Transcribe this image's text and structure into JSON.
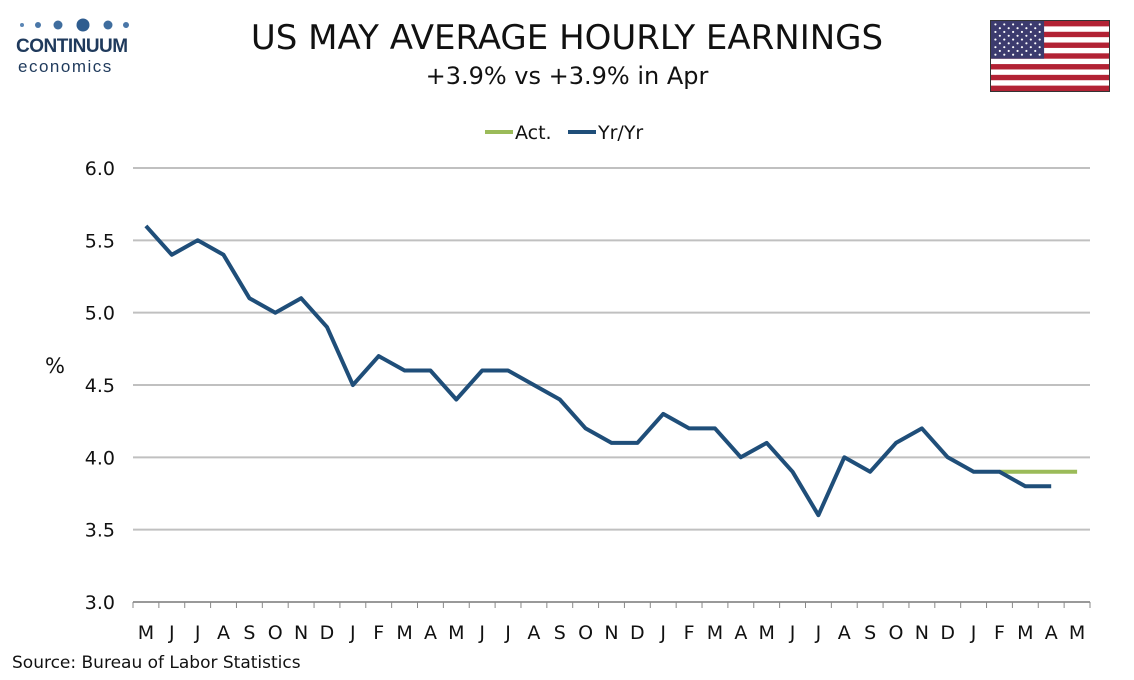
{
  "logo": {
    "name": "CONTINUUM",
    "sub": "economics",
    "color": "#1f3a5c"
  },
  "header": {
    "title": "US MAY AVERAGE HOURLY EARNINGS",
    "subtitle": "+3.9% vs +3.9% in Apr"
  },
  "flag": {
    "icon": "us-flag-icon"
  },
  "source": "Source: Bureau of Labor Statistics",
  "chart_data": {
    "type": "line",
    "title": "US MAY AVERAGE HOURLY EARNINGS",
    "subtitle": "+3.9% vs +3.9% in Apr",
    "ylabel": "%",
    "xlabel": "",
    "ylim": [
      3.0,
      6.0
    ],
    "yticks": [
      "3.0",
      "3.5",
      "4.0",
      "4.5",
      "5.0",
      "5.5",
      "6.0"
    ],
    "grid": true,
    "legend_position": "top-center",
    "categories": [
      "M",
      "J",
      "J",
      "A",
      "S",
      "O",
      "N",
      "D",
      "J",
      "F",
      "M",
      "A",
      "M",
      "J",
      "J",
      "A",
      "S",
      "O",
      "N",
      "D",
      "J",
      "F",
      "M",
      "A",
      "M",
      "J",
      "J",
      "A",
      "S",
      "O",
      "N",
      "D",
      "J",
      "F",
      "M",
      "A",
      "M"
    ],
    "series": [
      {
        "name": "Act.",
        "color": "#9bbb59",
        "values": [
          null,
          null,
          null,
          null,
          null,
          null,
          null,
          null,
          null,
          null,
          null,
          null,
          null,
          null,
          null,
          null,
          null,
          null,
          null,
          null,
          null,
          null,
          null,
          null,
          null,
          null,
          null,
          null,
          null,
          null,
          null,
          null,
          null,
          3.9,
          3.9,
          3.9,
          3.9
        ]
      },
      {
        "name": "Yr/Yr",
        "color": "#1f4e79",
        "values": [
          5.6,
          5.4,
          5.5,
          5.4,
          5.1,
          5.0,
          5.1,
          4.9,
          4.5,
          4.7,
          4.6,
          4.6,
          4.4,
          4.6,
          4.6,
          4.5,
          4.4,
          4.2,
          4.1,
          4.1,
          4.3,
          4.2,
          4.2,
          4.0,
          4.1,
          3.9,
          3.6,
          4.0,
          3.9,
          4.1,
          4.2,
          4.0,
          3.9,
          3.9,
          3.8,
          3.8,
          null
        ]
      }
    ]
  }
}
